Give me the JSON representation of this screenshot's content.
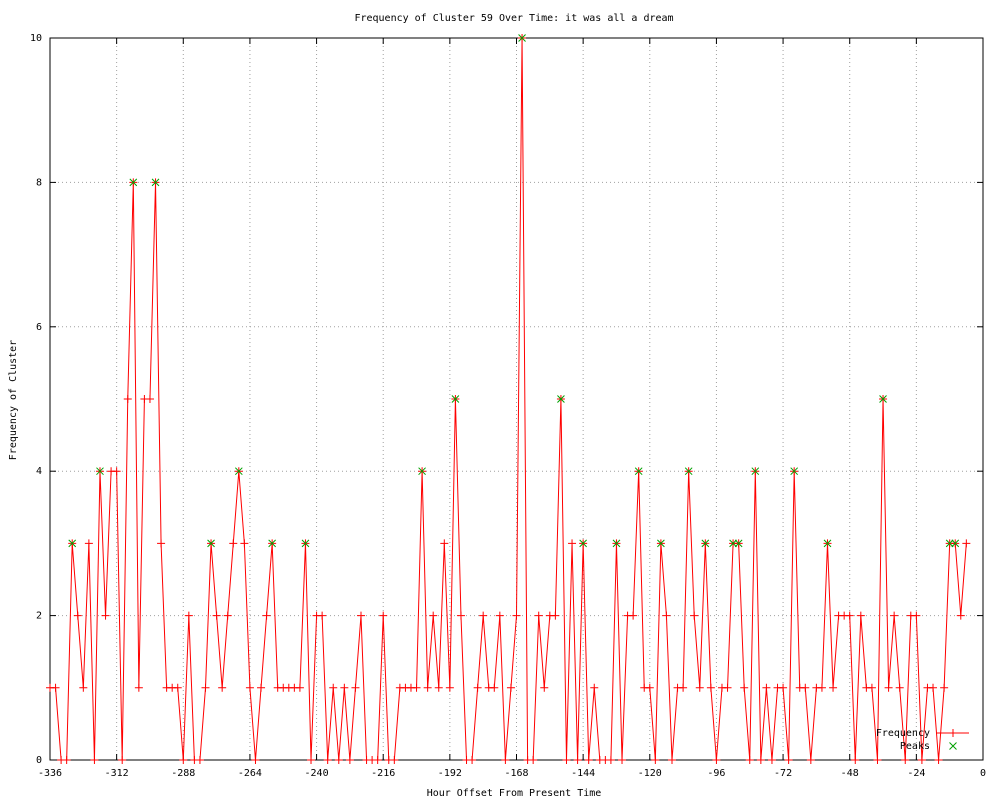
{
  "chart_data": {
    "type": "line",
    "title": "Frequency of Cluster 59 Over Time: it was all a dream",
    "x_label": "Hour Offset From Present Time",
    "y_label": "Frequency of Cluster",
    "xlim": [
      -336,
      0
    ],
    "xticks": [
      -336,
      -312,
      -288,
      -264,
      -240,
      -216,
      -192,
      -168,
      -144,
      -120,
      -96,
      -72,
      -48,
      -24,
      0
    ],
    "ylim": [
      0,
      10
    ],
    "yticks": [
      0,
      2,
      4,
      6,
      8,
      10
    ],
    "grid": true,
    "legend": "bottom right",
    "series": [
      {
        "name": "Frequency",
        "color": "#ff0000",
        "marker": "plus",
        "x": [
          -336,
          -334,
          -332,
          -330,
          -328,
          -326,
          -324,
          -322,
          -320,
          -318,
          -316,
          -314,
          -312,
          -310,
          -308,
          -306,
          -304,
          -302,
          -300,
          -298,
          -296,
          -294,
          -292,
          -290,
          -288,
          -286,
          -284,
          -282,
          -280,
          -278,
          -276,
          -274,
          -272,
          -270,
          -268,
          -266,
          -264,
          -262,
          -260,
          -258,
          -256,
          -254,
          -252,
          -250,
          -248,
          -246,
          -244,
          -242,
          -240,
          -238,
          -236,
          -234,
          -232,
          -230,
          -228,
          -226,
          -224,
          -222,
          -220,
          -218,
          -216,
          -214,
          -212,
          -210,
          -208,
          -206,
          -204,
          -202,
          -200,
          -198,
          -196,
          -194,
          -192,
          -190,
          -188,
          -186,
          -184,
          -182,
          -180,
          -178,
          -176,
          -174,
          -172,
          -170,
          -168,
          -166,
          -164,
          -162,
          -160,
          -158,
          -156,
          -154,
          -152,
          -150,
          -148,
          -146,
          -144,
          -142,
          -140,
          -138,
          -136,
          -134,
          -132,
          -130,
          -128,
          -126,
          -124,
          -122,
          -120,
          -118,
          -116,
          -114,
          -112,
          -110,
          -108,
          -106,
          -104,
          -102,
          -100,
          -98,
          -96,
          -94,
          -92,
          -90,
          -88,
          -86,
          -84,
          -82,
          -80,
          -78,
          -76,
          -74,
          -72,
          -70,
          -68,
          -66,
          -64,
          -62,
          -60,
          -58,
          -56,
          -54,
          -52,
          -50,
          -48,
          -46,
          -44,
          -42,
          -40,
          -38,
          -36,
          -34,
          -32,
          -30,
          -28,
          -26,
          -24,
          -22,
          -20,
          -18,
          -16,
          -14,
          -12,
          -10,
          -8,
          -6
        ],
        "values": [
          1,
          1,
          0,
          0,
          3,
          2,
          1,
          3,
          0,
          4,
          2,
          4,
          4,
          0,
          5,
          8,
          1,
          5,
          5,
          8,
          3,
          1,
          1,
          1,
          0,
          2,
          0,
          0,
          1,
          3,
          2,
          1,
          2,
          3,
          4,
          3,
          1,
          0,
          1,
          2,
          3,
          1,
          1,
          1,
          1,
          1,
          3,
          0,
          2,
          2,
          0,
          1,
          0,
          1,
          0,
          1,
          2,
          0,
          0,
          0,
          2,
          0,
          0,
          1,
          1,
          1,
          1,
          4,
          1,
          2,
          1,
          3,
          1,
          5,
          2,
          0,
          0,
          1,
          2,
          1,
          1,
          2,
          0,
          1,
          2,
          10,
          0,
          0,
          2,
          1,
          2,
          2,
          5,
          0,
          3,
          0,
          3,
          0,
          1,
          0,
          0,
          0,
          3,
          0,
          2,
          2,
          4,
          1,
          1,
          0,
          3,
          2,
          0,
          1,
          1,
          4,
          2,
          1,
          3,
          1,
          0,
          1,
          1,
          3,
          3,
          1,
          0,
          4,
          0,
          1,
          0,
          1,
          1,
          0,
          4,
          1,
          1,
          0,
          1,
          1,
          3,
          1,
          2,
          2,
          2,
          0,
          2,
          1,
          1,
          0,
          5,
          1,
          2,
          1,
          0,
          2,
          2,
          0,
          1,
          1,
          0,
          1,
          3,
          3,
          2,
          3
        ]
      },
      {
        "name": "Peaks",
        "color": "#00a000",
        "marker": "cross",
        "x": [
          -328,
          -318,
          -306,
          -298,
          -278,
          -268,
          -256,
          -244,
          -202,
          -190,
          -166,
          -152,
          -144,
          -132,
          -124,
          -116,
          -106,
          -100,
          -90,
          -88,
          -82,
          -68,
          -56,
          -36,
          -12,
          -10
        ],
        "values": [
          3,
          4,
          8,
          8,
          3,
          4,
          3,
          3,
          4,
          5,
          10,
          5,
          3,
          3,
          4,
          3,
          4,
          3,
          3,
          3,
          4,
          4,
          3,
          5,
          3,
          3
        ]
      }
    ]
  }
}
